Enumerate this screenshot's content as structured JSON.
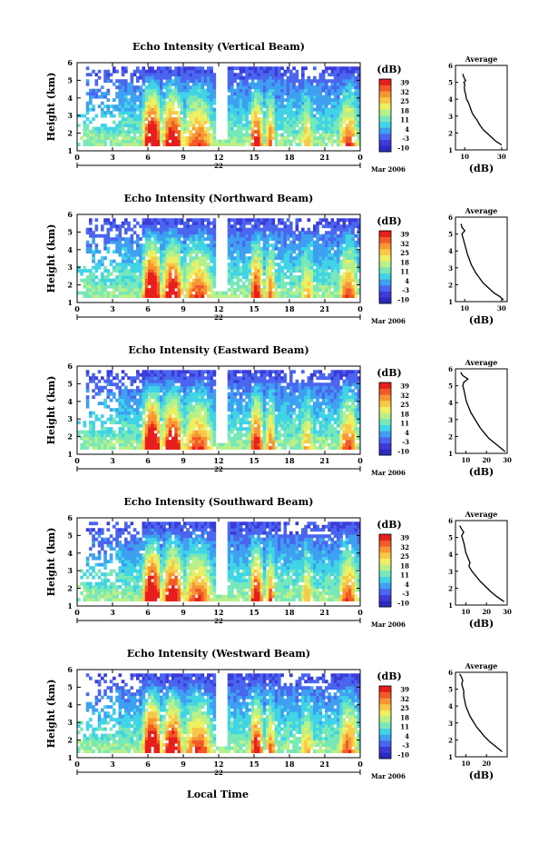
{
  "figure": {
    "x_label": "Local Time",
    "date_day": "22",
    "date_month": "Mar 2006"
  },
  "colorbar": {
    "unit_label": "(dB)",
    "tick_labels": [
      "39",
      "32",
      "25",
      "18",
      "11",
      "4",
      "-3",
      "-10"
    ],
    "colors": [
      "#2b2bbf",
      "#3b3bd9",
      "#4a66ee",
      "#3f9ff0",
      "#41d3e6",
      "#78e8b8",
      "#b8f08a",
      "#eef064",
      "#f9c84a",
      "#f89636",
      "#f25a26",
      "#e61e1e"
    ]
  },
  "chart_data": [
    {
      "type": "heatmap",
      "title": "Echo Intensity (Vertical Beam)",
      "ylabel": "Height (km)",
      "x_ticks": [
        "0",
        "3",
        "6",
        "9",
        "12",
        "15",
        "18",
        "21",
        "0"
      ],
      "y_ticks": [
        "1",
        "2",
        "3",
        "4",
        "5",
        "6"
      ],
      "xlim": [
        0,
        24
      ],
      "ylim": [
        1,
        6
      ],
      "clim": [
        -10,
        39
      ],
      "units": "dB",
      "summary": {
        "peak_echo_dB": 39,
        "strong_periods_h": [
          [
            5.5,
            11.5
          ],
          [
            14.5,
            16.5
          ],
          [
            21.5,
            23.5
          ]
        ],
        "min_height_km": 1.3
      },
      "profile": {
        "title": "Average",
        "xlabel": "(dB)",
        "x_ticks": [
          "10",
          "30"
        ],
        "y_ticks": [
          "1",
          "2",
          "3",
          "4",
          "5",
          "6"
        ],
        "xlim": [
          5,
          33
        ],
        "ylim": [
          1,
          6
        ],
        "heights": [
          5.5,
          5.3,
          5.1,
          5.0,
          4.9,
          4.7,
          4.5,
          4.3,
          4.0,
          3.8,
          3.5,
          3.2,
          3.0,
          2.8,
          2.5,
          2.2,
          2.0,
          1.8,
          1.5,
          1.3
        ],
        "values": [
          9.0,
          9.5,
          10.5,
          9.5,
          10.0,
          9.8,
          10.0,
          10.5,
          11.0,
          12.0,
          13.0,
          14.0,
          15.0,
          16.5,
          18.0,
          20.0,
          22.0,
          24.0,
          27.0,
          30.0
        ]
      }
    },
    {
      "type": "heatmap",
      "title": "Echo Intensity (Northward Beam)",
      "ylabel": "Height (km)",
      "x_ticks": [
        "0",
        "3",
        "6",
        "9",
        "12",
        "15",
        "18",
        "21",
        "0"
      ],
      "y_ticks": [
        "1",
        "2",
        "3",
        "4",
        "5",
        "6"
      ],
      "xlim": [
        0,
        24
      ],
      "ylim": [
        1,
        6
      ],
      "clim": [
        -10,
        39
      ],
      "units": "dB",
      "summary": {
        "peak_echo_dB": 39,
        "strong_periods_h": [
          [
            5.5,
            11.5
          ],
          [
            14.5,
            16.5
          ],
          [
            21.5,
            23.5
          ]
        ],
        "min_height_km": 1.0
      },
      "profile": {
        "title": "Average",
        "xlabel": "(dB)",
        "x_ticks": [
          "10",
          "30"
        ],
        "y_ticks": [
          "1",
          "2",
          "3",
          "4",
          "5",
          "6"
        ],
        "xlim": [
          5,
          33
        ],
        "ylim": [
          1,
          6
        ],
        "heights": [
          5.6,
          5.4,
          5.2,
          5.0,
          4.8,
          4.6,
          4.4,
          4.2,
          4.0,
          3.8,
          3.5,
          3.2,
          3.0,
          2.7,
          2.4,
          2.1,
          1.8,
          1.5,
          1.3,
          1.1
        ],
        "values": [
          8.0,
          8.5,
          10.0,
          8.5,
          9.0,
          9.5,
          10.0,
          10.5,
          11.0,
          11.5,
          12.5,
          13.5,
          14.5,
          16.0,
          18.0,
          20.0,
          23.0,
          26.0,
          29.0,
          31.0
        ]
      }
    },
    {
      "type": "heatmap",
      "title": "Echo Intensity (Eastward Beam)",
      "ylabel": "Height (km)",
      "x_ticks": [
        "0",
        "3",
        "6",
        "9",
        "12",
        "15",
        "18",
        "21",
        "0"
      ],
      "y_ticks": [
        "1",
        "2",
        "3",
        "4",
        "5",
        "6"
      ],
      "xlim": [
        0,
        24
      ],
      "ylim": [
        1,
        6
      ],
      "clim": [
        -10,
        39
      ],
      "units": "dB",
      "summary": {
        "peak_echo_dB": 39,
        "strong_periods_h": [
          [
            5.5,
            11.5
          ],
          [
            14.5,
            16.5
          ],
          [
            21.5,
            23.5
          ]
        ],
        "min_height_km": 1.0
      },
      "profile": {
        "title": "Average",
        "xlabel": "(dB)",
        "x_ticks": [
          "10",
          "20",
          "30"
        ],
        "y_ticks": [
          "1",
          "2",
          "3",
          "4",
          "5",
          "6"
        ],
        "xlim": [
          5,
          30
        ],
        "ylim": [
          1,
          6
        ],
        "heights": [
          5.8,
          5.6,
          5.4,
          5.2,
          5.0,
          4.8,
          4.5,
          4.2,
          4.0,
          3.7,
          3.4,
          3.1,
          2.8,
          2.5,
          2.2,
          1.9,
          1.6,
          1.3,
          1.1
        ],
        "values": [
          7.5,
          8.5,
          11.0,
          9.0,
          8.5,
          9.0,
          9.5,
          10.0,
          10.5,
          11.5,
          12.5,
          14.0,
          15.5,
          17.0,
          19.0,
          21.0,
          24.0,
          27.0,
          29.0
        ]
      }
    },
    {
      "type": "heatmap",
      "title": "Echo Intensity (Southward Beam)",
      "ylabel": "Height (km)",
      "x_ticks": [
        "0",
        "3",
        "6",
        "9",
        "12",
        "15",
        "18",
        "21",
        "0"
      ],
      "y_ticks": [
        "1",
        "2",
        "3",
        "4",
        "5",
        "6"
      ],
      "xlim": [
        0,
        24
      ],
      "ylim": [
        1,
        6
      ],
      "clim": [
        -10,
        39
      ],
      "units": "dB",
      "summary": {
        "peak_echo_dB": 39,
        "strong_periods_h": [
          [
            5.5,
            11.5
          ],
          [
            14.5,
            16.5
          ],
          [
            21.5,
            23.5
          ]
        ],
        "min_height_km": 1.0
      },
      "profile": {
        "title": "Average",
        "xlabel": "(dB)",
        "x_ticks": [
          "10",
          "20",
          "30"
        ],
        "y_ticks": [
          "1",
          "2",
          "3",
          "4",
          "5",
          "6"
        ],
        "xlim": [
          5,
          30
        ],
        "ylim": [
          1,
          6
        ],
        "heights": [
          5.7,
          5.5,
          5.3,
          5.1,
          4.9,
          4.7,
          4.4,
          4.1,
          3.8,
          3.5,
          3.3,
          3.0,
          2.7,
          2.4,
          2.1,
          1.8,
          1.5,
          1.2
        ],
        "values": [
          7.0,
          8.0,
          9.0,
          8.0,
          8.5,
          9.0,
          9.5,
          10.0,
          11.0,
          12.0,
          11.5,
          13.0,
          15.0,
          17.0,
          19.5,
          22.0,
          25.0,
          28.5
        ]
      }
    },
    {
      "type": "heatmap",
      "title": "Echo Intensity (Westward Beam)",
      "ylabel": "Height (km)",
      "x_ticks": [
        "0",
        "3",
        "6",
        "9",
        "12",
        "15",
        "18",
        "21",
        "0"
      ],
      "y_ticks": [
        "1",
        "2",
        "3",
        "4",
        "5",
        "6"
      ],
      "xlim": [
        0,
        24
      ],
      "ylim": [
        1,
        6
      ],
      "clim": [
        -10,
        39
      ],
      "units": "dB",
      "summary": {
        "peak_echo_dB": 39,
        "strong_periods_h": [
          [
            5.5,
            11.5
          ],
          [
            14.5,
            16.5
          ],
          [
            21.5,
            23.5
          ]
        ],
        "min_height_km": 1.0
      },
      "profile": {
        "title": "Average",
        "xlabel": "(dB)",
        "x_ticks": [
          "10",
          "20"
        ],
        "y_ticks": [
          "1",
          "2",
          "3",
          "4",
          "5",
          "6"
        ],
        "xlim": [
          5,
          30
        ],
        "ylim": [
          1,
          6
        ],
        "heights": [
          5.9,
          5.7,
          5.5,
          5.3,
          5.1,
          4.9,
          4.6,
          4.3,
          4.0,
          3.7,
          3.4,
          3.1,
          2.8,
          2.5,
          2.2,
          1.9,
          1.6,
          1.3
        ],
        "values": [
          7.0,
          8.0,
          8.5,
          8.0,
          8.5,
          9.0,
          9.0,
          9.5,
          10.0,
          11.0,
          12.0,
          13.5,
          15.0,
          17.0,
          19.0,
          21.5,
          24.5,
          27.5
        ]
      }
    }
  ]
}
